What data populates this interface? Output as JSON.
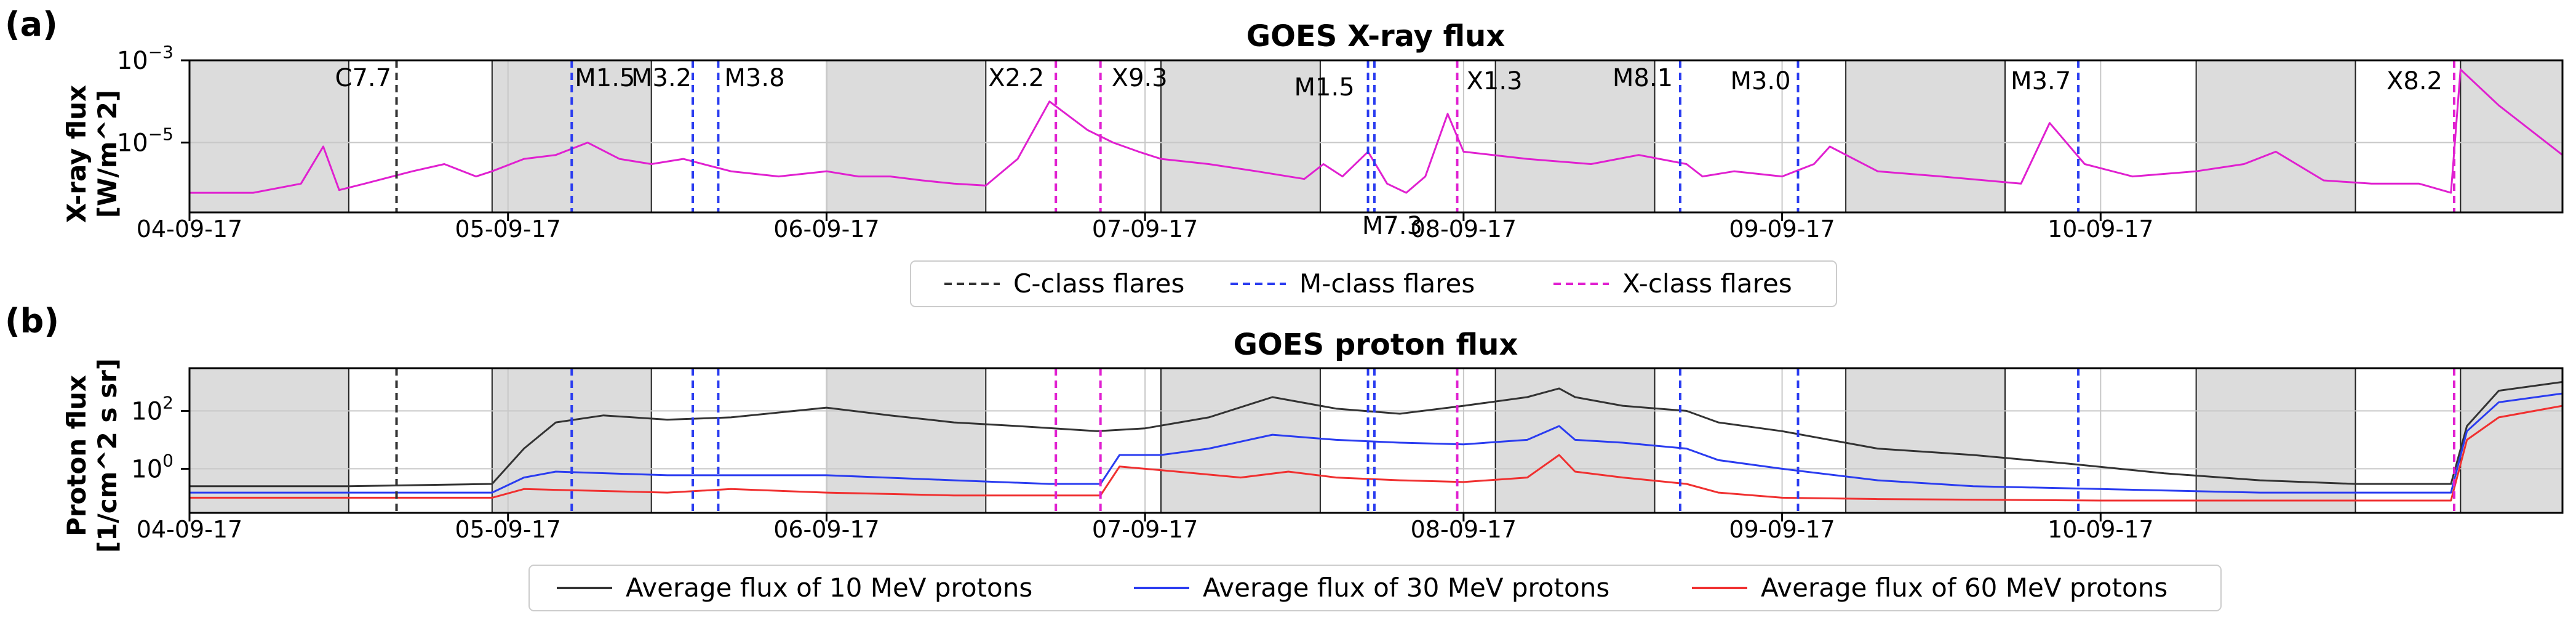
{
  "chart_data": [
    {
      "panel_label": "(a)",
      "type": "line",
      "title": "GOES X-ray flux",
      "ylabel": "X-ray flux\n[W/m^2]",
      "yscale": "log",
      "ylim": [
        2e-07,
        0.001
      ],
      "yticks": [
        {
          "value": 0.001,
          "base": "10",
          "exp": "−3"
        },
        {
          "value": 1e-05,
          "base": "10",
          "exp": "−5"
        }
      ],
      "xlim": [
        0,
        7
      ],
      "xticks": [
        {
          "value": 0,
          "label": "04-09-17"
        },
        {
          "value": 1,
          "label": "05-09-17"
        },
        {
          "value": 2,
          "label": "06-09-17"
        },
        {
          "value": 3,
          "label": "07-09-17"
        },
        {
          "value": 4,
          "label": "08-09-17"
        },
        {
          "value": 5,
          "label": "09-09-17"
        },
        {
          "value": 6,
          "label": "10-09-17"
        }
      ],
      "shaded_intervals": [
        [
          0,
          0.5
        ],
        [
          0.95,
          1.45
        ],
        [
          2.0,
          2.5
        ],
        [
          3.05,
          3.55
        ],
        [
          4.1,
          4.6
        ],
        [
          5.2,
          5.7
        ],
        [
          6.3,
          6.8
        ],
        [
          7.13,
          7.45
        ]
      ],
      "x_end": 7.45,
      "grid": true,
      "series": [
        {
          "name": "GOES X-ray flux",
          "color": "#e020d0",
          "x": [
            0,
            0.2,
            0.35,
            0.42,
            0.47,
            0.55,
            0.7,
            0.8,
            0.9,
            0.95,
            1.05,
            1.15,
            1.25,
            1.35,
            1.45,
            1.55,
            1.7,
            1.85,
            2.0,
            2.1,
            2.2,
            2.3,
            2.4,
            2.5,
            2.6,
            2.7,
            2.82,
            2.9,
            2.98,
            3.05,
            3.2,
            3.35,
            3.5,
            3.56,
            3.62,
            3.7,
            3.76,
            3.82,
            3.88,
            3.95,
            4.0,
            4.2,
            4.4,
            4.55,
            4.7,
            4.75,
            4.85,
            5.0,
            5.1,
            5.15,
            5.3,
            5.5,
            5.75,
            5.84,
            5.95,
            6.1,
            6.3,
            6.45,
            6.55,
            6.7,
            6.85,
            7.0,
            7.1,
            7.13,
            7.25,
            7.45
          ],
          "y": [
            6e-07,
            6e-07,
            1e-06,
            8e-06,
            7e-07,
            1e-06,
            2e-06,
            3e-06,
            1.5e-06,
            2e-06,
            4e-06,
            5e-06,
            1e-05,
            4e-06,
            3e-06,
            4e-06,
            2e-06,
            1.5e-06,
            2e-06,
            1.5e-06,
            1.5e-06,
            1.2e-06,
            1e-06,
            9e-07,
            4e-06,
            0.0001,
            2e-05,
            1e-05,
            6e-06,
            4e-06,
            3e-06,
            2e-06,
            1.3e-06,
            3e-06,
            1.5e-06,
            6e-06,
            1e-06,
            6e-07,
            1.5e-06,
            5e-05,
            6e-06,
            4e-06,
            3e-06,
            5e-06,
            3e-06,
            1.5e-06,
            2e-06,
            1.5e-06,
            3e-06,
            8e-06,
            2e-06,
            1.5e-06,
            1e-06,
            3e-05,
            3e-06,
            1.5e-06,
            2e-06,
            3e-06,
            6e-06,
            1.2e-06,
            1e-06,
            1e-06,
            6e-07,
            0.0006,
            8e-05,
            5e-06
          ]
        }
      ],
      "flare_lines": [
        {
          "x": 0.65,
          "class": "C",
          "label": "C7.7"
        },
        {
          "x": 1.2,
          "class": "M",
          "label": "M1.5"
        },
        {
          "x": 1.58,
          "class": "M",
          "label": "M3.2"
        },
        {
          "x": 1.66,
          "class": "M",
          "label": "M3.8"
        },
        {
          "x": 2.72,
          "class": "X",
          "label": "X2.2"
        },
        {
          "x": 2.86,
          "class": "X",
          "label": "X9.3"
        },
        {
          "x": 3.7,
          "class": "M",
          "label": "M1.5"
        },
        {
          "x": 3.72,
          "class": "M",
          "label": "M7.3"
        },
        {
          "x": 3.98,
          "class": "X",
          "label": "X1.3"
        },
        {
          "x": 4.68,
          "class": "M",
          "label": "M8.1"
        },
        {
          "x": 5.05,
          "class": "M",
          "label": "M3.0"
        },
        {
          "x": 5.93,
          "class": "M",
          "label": "M3.7"
        },
        {
          "x": 7.11,
          "class": "X",
          "label": "X8.2"
        }
      ],
      "legend": {
        "placement": "bottom-center",
        "entries": [
          {
            "label": "C-class flares",
            "color": "#333333",
            "style": "dashed"
          },
          {
            "label": "M-class flares",
            "color": "#2a3cf0",
            "style": "dashed"
          },
          {
            "label": "X-class flares",
            "color": "#e020d0",
            "style": "dashed"
          }
        ]
      }
    },
    {
      "panel_label": "(b)",
      "type": "line",
      "title": "GOES proton flux",
      "ylabel": "Proton flux\n[1/cm^2 s sr]",
      "yscale": "log",
      "ylim": [
        0.03,
        3000
      ],
      "yticks": [
        {
          "value": 100,
          "base": "10",
          "exp": "2"
        },
        {
          "value": 1,
          "base": "10",
          "exp": "0"
        }
      ],
      "xlim": [
        0,
        7
      ],
      "xticks": [
        {
          "value": 0,
          "label": "04-09-17"
        },
        {
          "value": 1,
          "label": "05-09-17"
        },
        {
          "value": 2,
          "label": "06-09-17"
        },
        {
          "value": 3,
          "label": "07-09-17"
        },
        {
          "value": 4,
          "label": "08-09-17"
        },
        {
          "value": 5,
          "label": "09-09-17"
        },
        {
          "value": 6,
          "label": "10-09-17"
        }
      ],
      "shaded_intervals": [
        [
          0,
          0.5
        ],
        [
          0.95,
          1.45
        ],
        [
          2.0,
          2.5
        ],
        [
          3.05,
          3.55
        ],
        [
          4.1,
          4.6
        ],
        [
          5.2,
          5.7
        ],
        [
          6.3,
          6.8
        ],
        [
          7.13,
          7.45
        ]
      ],
      "x_end": 7.45,
      "grid": true,
      "series": [
        {
          "name": "Average flux of 10 MeV protons",
          "color": "#333333",
          "x": [
            0,
            0.5,
            0.95,
            1.05,
            1.15,
            1.3,
            1.5,
            1.7,
            2.0,
            2.2,
            2.4,
            2.6,
            2.85,
            3.0,
            3.2,
            3.4,
            3.6,
            3.8,
            4.0,
            4.2,
            4.3,
            4.35,
            4.5,
            4.7,
            4.8,
            5.0,
            5.3,
            5.6,
            5.9,
            6.2,
            6.5,
            6.8,
            7.1,
            7.15,
            7.25,
            7.45
          ],
          "y": [
            0.25,
            0.25,
            0.3,
            5,
            40,
            70,
            50,
            60,
            130,
            70,
            40,
            30,
            20,
            25,
            60,
            300,
            120,
            80,
            150,
            300,
            600,
            300,
            150,
            100,
            40,
            20,
            5,
            3,
            1.5,
            0.7,
            0.4,
            0.3,
            0.3,
            30,
            500,
            1000
          ]
        },
        {
          "name": "Average flux of 30 MeV protons",
          "color": "#2a3cf0",
          "x": [
            0,
            0.95,
            1.05,
            1.15,
            1.5,
            1.7,
            2.0,
            2.4,
            2.7,
            2.86,
            2.92,
            3.05,
            3.2,
            3.4,
            3.6,
            3.8,
            4.0,
            4.2,
            4.3,
            4.35,
            4.5,
            4.7,
            4.8,
            5.0,
            5.3,
            5.6,
            6.0,
            6.5,
            7.1,
            7.15,
            7.25,
            7.45
          ],
          "y": [
            0.15,
            0.15,
            0.5,
            0.8,
            0.6,
            0.6,
            0.6,
            0.4,
            0.3,
            0.3,
            3,
            3,
            5,
            15,
            10,
            8,
            7,
            10,
            30,
            10,
            8,
            5,
            2,
            1,
            0.4,
            0.25,
            0.2,
            0.15,
            0.15,
            20,
            200,
            400
          ]
        },
        {
          "name": "Average flux of 60 MeV protons",
          "color": "#f03030",
          "x": [
            0,
            0.95,
            1.05,
            1.5,
            1.7,
            2.0,
            2.4,
            2.86,
            2.92,
            3.1,
            3.3,
            3.45,
            3.6,
            3.8,
            4.0,
            4.2,
            4.3,
            4.35,
            4.5,
            4.7,
            4.8,
            5.0,
            5.3,
            6.0,
            7.1,
            7.15,
            7.25,
            7.45
          ],
          "y": [
            0.1,
            0.1,
            0.2,
            0.15,
            0.2,
            0.15,
            0.12,
            0.12,
            1.2,
            0.8,
            0.5,
            0.8,
            0.5,
            0.4,
            0.35,
            0.5,
            3,
            0.8,
            0.5,
            0.3,
            0.15,
            0.1,
            0.09,
            0.08,
            0.08,
            10,
            60,
            150
          ]
        }
      ],
      "flare_lines": [
        {
          "x": 0.65,
          "class": "C"
        },
        {
          "x": 1.2,
          "class": "M"
        },
        {
          "x": 1.58,
          "class": "M"
        },
        {
          "x": 1.66,
          "class": "M"
        },
        {
          "x": 2.72,
          "class": "X"
        },
        {
          "x": 2.86,
          "class": "X"
        },
        {
          "x": 3.7,
          "class": "M"
        },
        {
          "x": 3.72,
          "class": "M"
        },
        {
          "x": 3.98,
          "class": "X"
        },
        {
          "x": 4.68,
          "class": "M"
        },
        {
          "x": 5.05,
          "class": "M"
        },
        {
          "x": 5.93,
          "class": "M"
        },
        {
          "x": 7.11,
          "class": "X"
        }
      ],
      "legend": {
        "placement": "bottom-center",
        "entries": [
          {
            "label": "Average flux of 10 MeV protons",
            "color": "#333333",
            "style": "solid"
          },
          {
            "label": "Average flux of 30 MeV protons",
            "color": "#2a3cf0",
            "style": "solid"
          },
          {
            "label": "Average flux of 60 MeV protons",
            "color": "#f03030",
            "style": "solid"
          }
        ]
      }
    }
  ],
  "flare_colors": {
    "C": "#333333",
    "M": "#2a3cf0",
    "X": "#e020d0"
  },
  "shade_color": "#dcdcdc"
}
